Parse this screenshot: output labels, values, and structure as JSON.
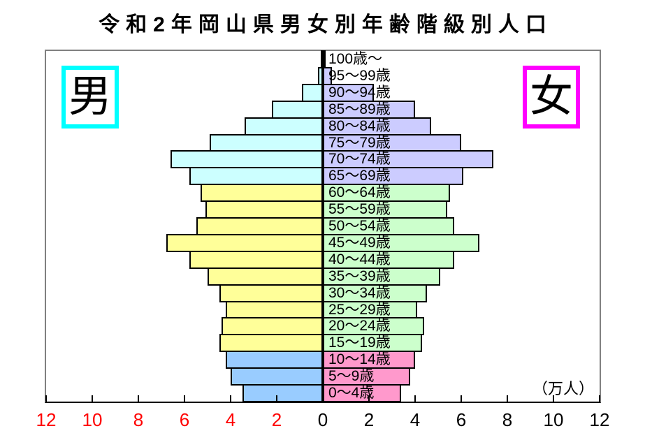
{
  "title": "令和2年岡山県男女別年齢階級別人口",
  "legend": {
    "male": "男",
    "female": "女"
  },
  "axis": {
    "unit_label": "（万人）",
    "ticks": [
      {
        "label": "12",
        "value": -12,
        "color": "#ff0000"
      },
      {
        "label": "10",
        "value": -10,
        "color": "#ff0000"
      },
      {
        "label": "8",
        "value": -8,
        "color": "#ff0000"
      },
      {
        "label": "6",
        "value": -6,
        "color": "#ff0000"
      },
      {
        "label": "4",
        "value": -4,
        "color": "#ff0000"
      },
      {
        "label": "2",
        "value": -2,
        "color": "#ff0000"
      },
      {
        "label": "0",
        "value": 0,
        "color": "#000000"
      },
      {
        "label": "2",
        "value": 2,
        "color": "#000000"
      },
      {
        "label": "4",
        "value": 4,
        "color": "#000000"
      },
      {
        "label": "6",
        "value": 6,
        "color": "#000000"
      },
      {
        "label": "8",
        "value": 8,
        "color": "#000000"
      },
      {
        "label": "10",
        "value": 10,
        "color": "#000000"
      },
      {
        "label": "12",
        "value": 12,
        "color": "#000000"
      }
    ]
  },
  "colors": {
    "bar_border": "#000000",
    "male_legend_border": "#00ffff",
    "female_legend_border": "#ff00ff",
    "male": {
      "senior": "#ccffff",
      "working": "#ffff99",
      "young": "#99ccff"
    },
    "female": {
      "senior": "#ccccff",
      "working": "#ccffcc",
      "young": "#ff99cc"
    }
  },
  "chart_data": {
    "type": "bar",
    "subtype": "population-pyramid",
    "title": "令和2年岡山県男女別年齢階級別人口",
    "unit": "万人",
    "xlim": [
      -12,
      12
    ],
    "tick_interval": 2,
    "legend_position": "top-corners-inside",
    "grid": false,
    "categories": [
      "100歳〜",
      "95〜99歳",
      "90〜94歳",
      "85〜89歳",
      "80〜84歳",
      "75〜79歳",
      "70〜74歳",
      "65〜69歳",
      "60〜64歳",
      "55〜59歳",
      "50〜54歳",
      "45〜49歳",
      "40〜44歳",
      "35〜39歳",
      "30〜34歳",
      "25〜29歳",
      "20〜24歳",
      "15〜19歳",
      "10〜14歳",
      "5〜9歳",
      "0〜4歳"
    ],
    "bands": [
      "senior",
      "senior",
      "senior",
      "senior",
      "senior",
      "senior",
      "senior",
      "senior",
      "working",
      "working",
      "working",
      "working",
      "working",
      "working",
      "working",
      "working",
      "working",
      "working",
      "young",
      "young",
      "young"
    ],
    "series": [
      {
        "name": "男",
        "side": "left",
        "values": [
          0.05,
          0.2,
          0.9,
          2.2,
          3.4,
          4.9,
          6.6,
          5.8,
          5.3,
          5.1,
          5.5,
          6.8,
          5.8,
          5.0,
          4.5,
          4.2,
          4.4,
          4.5,
          4.2,
          4.0,
          3.5
        ]
      },
      {
        "name": "女",
        "side": "right",
        "values": [
          0.1,
          0.4,
          2.2,
          4.0,
          4.7,
          6.0,
          7.4,
          6.1,
          5.5,
          5.4,
          5.7,
          6.8,
          5.7,
          5.1,
          4.5,
          4.1,
          4.4,
          4.3,
          4.0,
          3.8,
          3.4
        ]
      }
    ]
  }
}
